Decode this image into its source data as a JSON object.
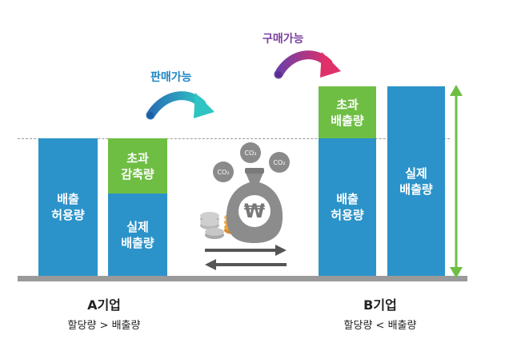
{
  "labels": {
    "sell_possible": "판매가능",
    "buy_possible": "구매가능"
  },
  "company_a": {
    "name": "A기업",
    "relation": "할당량 > 배출량",
    "allowance_label": "배출\n허용량",
    "excess_reduction_label": "초과\n감축량",
    "actual_emission_label": "실제\n배출량"
  },
  "company_b": {
    "name": "B기업",
    "relation": "할당량 < 배출량",
    "excess_emission_label": "초과\n배출량",
    "allowance_label": "배출\n허용량",
    "actual_emission_label": "실제\n배출량"
  },
  "center_graphic": {
    "money_symbol": "₩",
    "co2_bubbles": [
      "CO₂",
      "CO₂",
      "CO₂"
    ]
  },
  "colors": {
    "bar_blue": "#2b93c9",
    "green": "#6fbe44",
    "sell_arrow": "#1f86c4",
    "sell_label": "#1f86c4",
    "buy_arrow": "#c0318a",
    "buy_label": "#7b3fa0",
    "baseline": "#9a9a9a"
  }
}
